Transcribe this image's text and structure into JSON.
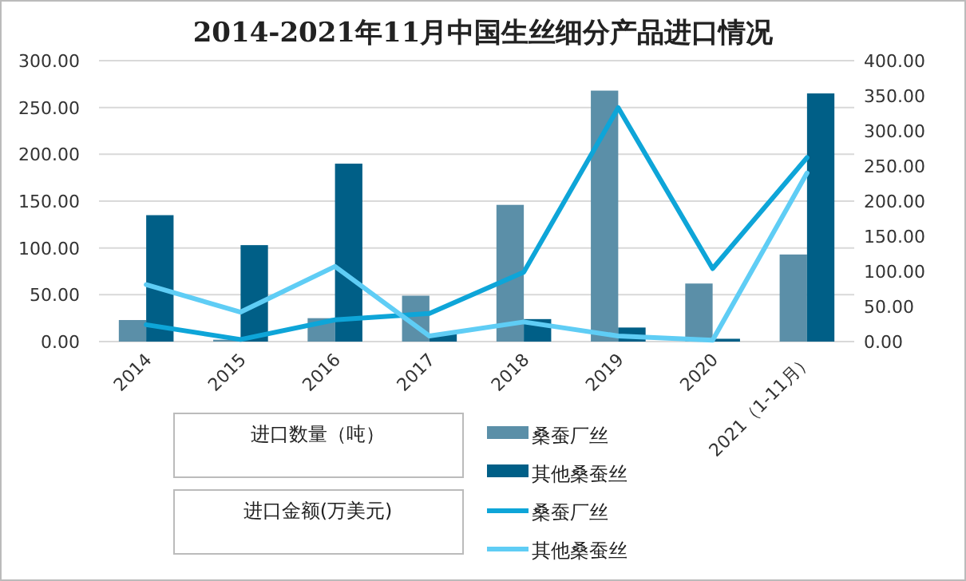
{
  "chart_data": {
    "type": "bar",
    "title": "2014-2021年11月中国生丝细分产品进口情况",
    "categories": [
      "2014",
      "2015",
      "2016",
      "2017",
      "2018",
      "2019",
      "2020",
      "2021（1-11月）"
    ],
    "series": [
      {
        "name": "桑蚕厂丝",
        "type": "bar",
        "color": "#5b8fa8",
        "values": [
          23,
          2,
          25,
          49,
          146,
          268,
          62,
          93
        ]
      },
      {
        "name": "其他桑蚕丝",
        "type": "bar",
        "color": "#005f87",
        "values": [
          135,
          103,
          190,
          8,
          24,
          15,
          3,
          265
        ]
      },
      {
        "name": "桑蚕厂丝",
        "type": "line",
        "axis": "y2",
        "color": "#0ea5d8",
        "values": [
          24,
          3,
          31,
          40,
          99,
          333,
          104,
          262
        ]
      },
      {
        "name": "其他桑蚕丝",
        "type": "line",
        "axis": "y2",
        "color": "#5fcdf5",
        "values": [
          81,
          42,
          107,
          8,
          28,
          8,
          2,
          240
        ]
      }
    ],
    "ylim": [
      0,
      300
    ],
    "yticks": [
      {
        "value": 0,
        "label": "0.00"
      },
      {
        "value": 50,
        "label": "50.00"
      },
      {
        "value": 100,
        "label": "100.00"
      },
      {
        "value": 150,
        "label": "150.00"
      },
      {
        "value": 200,
        "label": "200.00"
      },
      {
        "value": 250,
        "label": "250.00"
      },
      {
        "value": 300,
        "label": "300.00"
      }
    ],
    "y2lim": [
      0,
      400
    ],
    "y2ticks": [
      {
        "value": 0,
        "label": "0.00"
      },
      {
        "value": 50,
        "label": "50.00"
      },
      {
        "value": 100,
        "label": "100.00"
      },
      {
        "value": 150,
        "label": "150.00"
      },
      {
        "value": 200,
        "label": "200.00"
      },
      {
        "value": 250,
        "label": "250.00"
      },
      {
        "value": 300,
        "label": "300.00"
      },
      {
        "value": 350,
        "label": "350.00"
      },
      {
        "value": 400,
        "label": "400.00"
      }
    ],
    "annotations": [
      "进口数量（吨）",
      "进口金额(万美元)"
    ],
    "grid": "y",
    "legend": "bottom",
    "marker": "none",
    "line_style": "solid"
  }
}
